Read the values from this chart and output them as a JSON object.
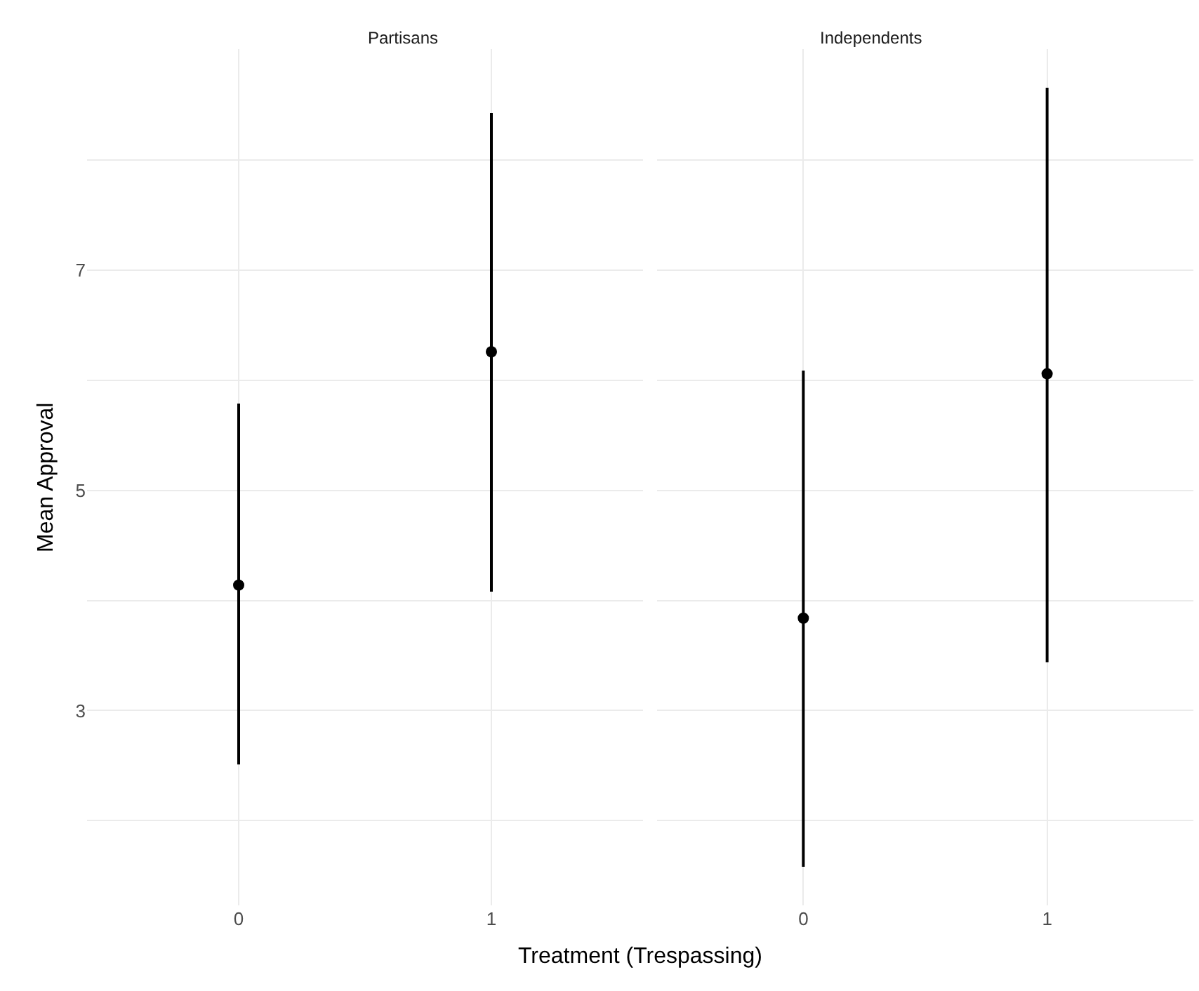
{
  "chart_data": [
    {
      "type": "scatter",
      "title": "Partisans",
      "xlabel": "Treatment (Trespassing)",
      "ylabel": "Mean Approval",
      "categories": [
        "0",
        "1"
      ],
      "series": [
        {
          "color": "#000000",
          "values": [
            4.14,
            6.26
          ],
          "errors": [
            [
              2.51,
              5.79
            ],
            [
              4.08,
              8.43
            ]
          ]
        }
      ],
      "ylim": [
        1.23,
        9.01
      ],
      "yticks": [
        {
          "value": 2,
          "label": null
        },
        3,
        {
          "value": 4,
          "label": null
        },
        5,
        {
          "value": 6,
          "label": null
        },
        7,
        {
          "value": 8,
          "label": null
        }
      ],
      "grid": true,
      "marker": "circle"
    },
    {
      "type": "scatter",
      "title": "Independents",
      "categories": [
        "0",
        "1"
      ],
      "series": [
        {
          "color": "#000000",
          "values": [
            3.84,
            6.06
          ],
          "errors": [
            [
              1.58,
              6.09
            ],
            [
              3.44,
              8.66
            ]
          ]
        }
      ],
      "ylim": [
        1.23,
        9.01
      ],
      "yticks": [
        {
          "value": 2,
          "label": null
        },
        3,
        {
          "value": 4,
          "label": null
        },
        5,
        {
          "value": 6,
          "label": null
        },
        7,
        {
          "value": 8,
          "label": null
        }
      ],
      "grid": true,
      "marker": "circle",
      "tick_labels": "x"
    }
  ]
}
